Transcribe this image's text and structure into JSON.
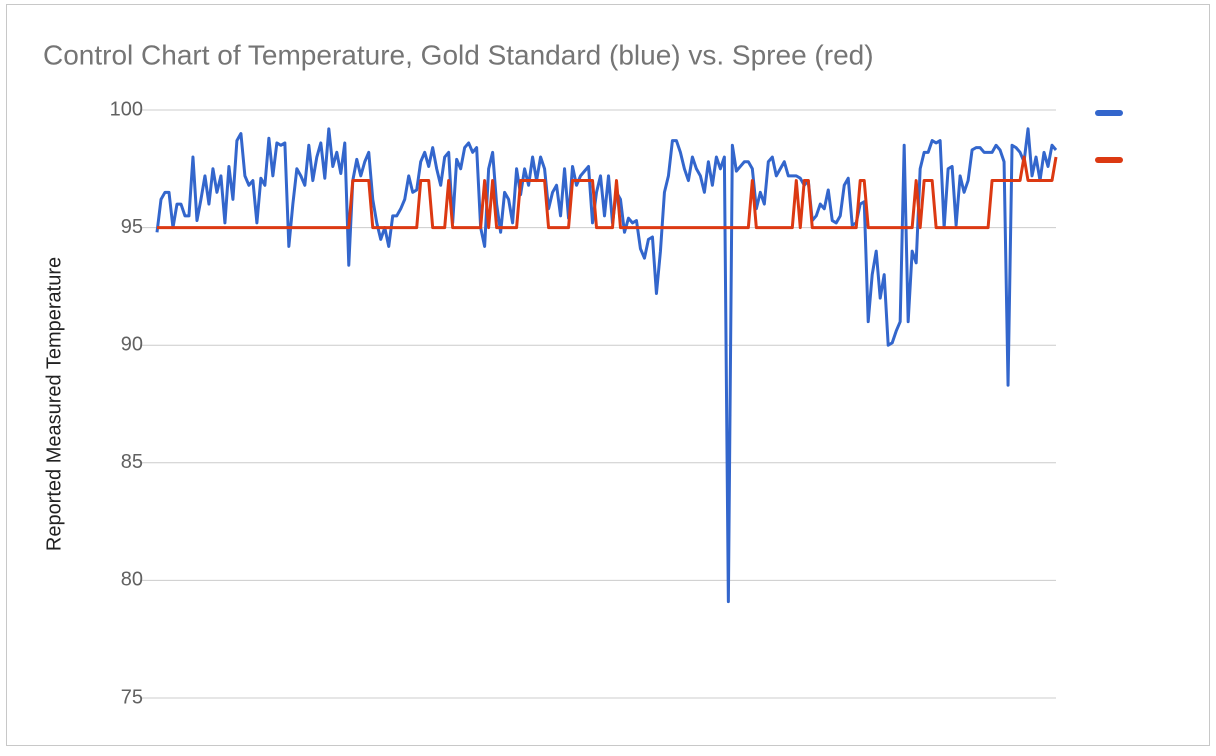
{
  "chart_data": {
    "type": "line",
    "title": "Control Chart of Temperature, Gold Standard (blue) vs. Spree (red)",
    "y_label": "Reported Measured Temperature",
    "ylim": [
      75,
      100
    ],
    "yticks": [
      75,
      80,
      85,
      90,
      95,
      100
    ],
    "grid": true,
    "legend": "right",
    "series": [
      {
        "color": "#3366cc",
        "values": [
          94.8,
          96.2,
          96.5,
          96.5,
          95,
          96,
          96,
          95.5,
          95.5,
          98,
          95.3,
          96.2,
          97.2,
          96,
          97.5,
          96.5,
          97.2,
          95.2,
          97.6,
          96.2,
          98.7,
          99,
          97.2,
          96.8,
          97,
          95.2,
          97.1,
          96.8,
          98.8,
          97.2,
          98.6,
          98.5,
          98.6,
          94.2,
          96,
          97.5,
          97.2,
          96.8,
          98.5,
          97,
          98,
          98.6,
          97.1,
          99.2,
          97.6,
          98.2,
          97.3,
          98.6,
          93.4,
          97,
          97.9,
          97.2,
          97.8,
          98.2,
          96.2,
          95.2,
          94.5,
          95,
          94.2,
          95.5,
          95.5,
          95.8,
          96.2,
          97.2,
          96.5,
          96.6,
          97.8,
          98.2,
          97.6,
          98.4,
          97.5,
          96.8,
          98,
          98.2,
          95.2,
          97.9,
          97.5,
          98.4,
          98.6,
          98.2,
          98.4,
          95,
          94.2,
          97.5,
          98.2,
          96,
          94.8,
          96.5,
          96.2,
          95.2,
          97.5,
          96.4,
          97.5,
          96.8,
          98,
          97,
          98,
          97.5,
          95.8,
          96.5,
          96.8,
          95.5,
          97.5,
          95.4,
          97.6,
          96.8,
          97.2,
          97.4,
          97.6,
          95.2,
          96.5,
          97.2,
          95.5,
          97.2,
          95.2,
          96.5,
          96.2,
          94.8,
          95.4,
          95.2,
          95.3,
          94.1,
          93.7,
          94.5,
          94.6,
          92.2,
          94,
          96.5,
          97.2,
          98.7,
          98.7,
          98.2,
          97.5,
          97,
          98,
          97.5,
          97.2,
          96.5,
          97.8,
          96.8,
          98,
          97.5,
          98,
          79.1,
          98.5,
          97.4,
          97.6,
          97.8,
          97.8,
          97.5,
          95.8,
          96.5,
          96,
          97.8,
          98,
          97.2,
          97.5,
          97.8,
          97.2,
          97.2,
          97.2,
          97.1,
          96.8,
          97,
          95.3,
          95.5,
          96,
          95.8,
          96.6,
          95.3,
          95.2,
          95.5,
          96.8,
          97.1,
          95.1,
          95.2,
          96,
          96.1,
          91,
          93,
          94,
          92,
          93,
          90,
          90.1,
          90.6,
          91,
          98.5,
          91,
          94,
          93.5,
          97.5,
          98.2,
          98.2,
          98.7,
          98.6,
          98.7,
          95,
          97.5,
          97.6,
          95.1,
          97.2,
          96.5,
          97,
          98.3,
          98.4,
          98.4,
          98.2,
          98.2,
          98.2,
          98.5,
          98.3,
          97.8,
          88.3,
          98.5,
          98.4,
          98.2,
          97.8,
          99.2,
          97.2,
          98,
          97,
          98.2,
          97.6,
          98.5,
          98.3
        ]
      },
      {
        "color": "#dc3912",
        "values": [
          95,
          95,
          95,
          95,
          95,
          95,
          95,
          95,
          95,
          95,
          95,
          95,
          95,
          95,
          95,
          95,
          95,
          95,
          95,
          95,
          95,
          95,
          95,
          95,
          95,
          95,
          95,
          95,
          95,
          95,
          95,
          95,
          95,
          95,
          95,
          95,
          95,
          95,
          95,
          95,
          95,
          95,
          95,
          95,
          95,
          95,
          95,
          95,
          95,
          97,
          97,
          97,
          97,
          97,
          95,
          95,
          95,
          95,
          95,
          95,
          95,
          95,
          95,
          95,
          95,
          95,
          97,
          97,
          97,
          95,
          95,
          95,
          95,
          97,
          95,
          95,
          95,
          95,
          95,
          95,
          95,
          95,
          97,
          95,
          97,
          95,
          95,
          95,
          95,
          95,
          95,
          97,
          97,
          97,
          97,
          97,
          97,
          97,
          95,
          95,
          95,
          95,
          95,
          95,
          97,
          97,
          97,
          97,
          97,
          97,
          95,
          95,
          95,
          95,
          95,
          97,
          95,
          95,
          95,
          95,
          95,
          95,
          95,
          95,
          95,
          95,
          95,
          95,
          95,
          95,
          95,
          95,
          95,
          95,
          95,
          95,
          95,
          95,
          95,
          95,
          95,
          95,
          95,
          95,
          95,
          95,
          95,
          95,
          95,
          97,
          95,
          95,
          95,
          95,
          95,
          95,
          95,
          95,
          95,
          95,
          97,
          95,
          97,
          97,
          95,
          95,
          95,
          95,
          95,
          95,
          95,
          95,
          95,
          95,
          95,
          95,
          97,
          97,
          95,
          95,
          95,
          95,
          95,
          95,
          95,
          95,
          95,
          95,
          95,
          95,
          97,
          95,
          97,
          97,
          97,
          95,
          95,
          95,
          95,
          95,
          95,
          95,
          95,
          95,
          95,
          95,
          95,
          95,
          95,
          97,
          97,
          97,
          97,
          97,
          97,
          97,
          97,
          98,
          97,
          97,
          97,
          97,
          97,
          97,
          97,
          98
        ]
      }
    ]
  }
}
